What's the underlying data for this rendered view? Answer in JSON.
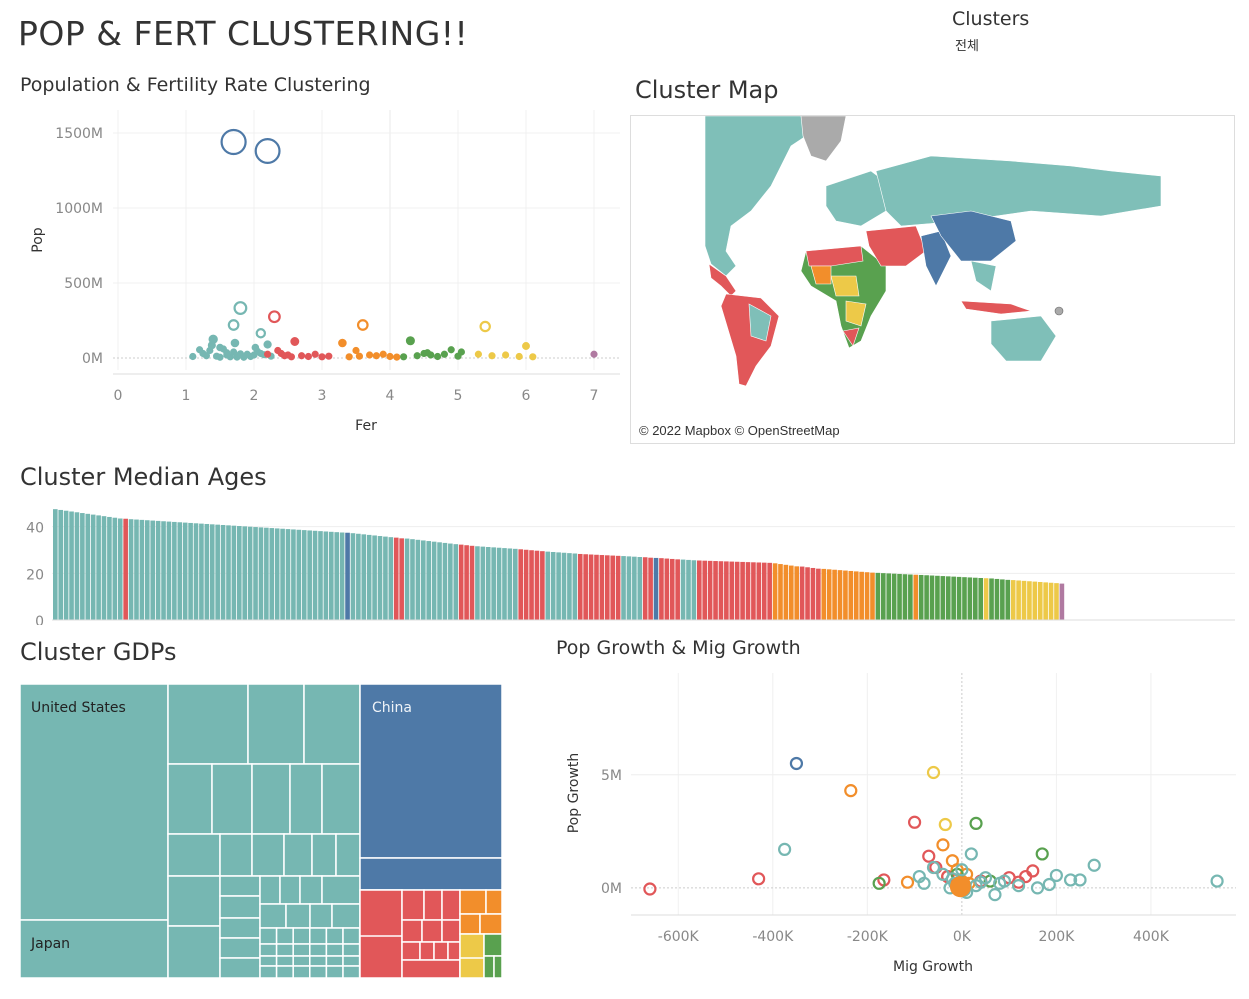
{
  "dashboard": {
    "title": "POP & FERT CLUSTERING!!",
    "filter_title": "Clusters",
    "filter_value": "전체"
  },
  "colors": {
    "teal": "#76b7b2",
    "blue": "#4e79a7",
    "red": "#e15759",
    "orange": "#f28e2b",
    "green": "#59a14f",
    "yellow": "#edc948",
    "purple": "#b07aa1",
    "gray": "#aaaaaa"
  },
  "titles": {
    "scatter": "Population & Fertility Rate Clustering",
    "map": "Cluster Map",
    "ages": "Cluster Median Ages",
    "gdp": "Cluster GDPs",
    "growth": "Pop Growth & Mig Growth"
  },
  "map": {
    "credit": "© 2022 Mapbox © OpenStreetMap"
  },
  "chart_data": [
    {
      "type": "scatter",
      "title": "Population & Fertility Rate Clustering",
      "xlabel": "Fer",
      "ylabel": "Pop",
      "xlim": [
        0,
        7
      ],
      "ylim": [
        -80,
        1600
      ],
      "xticks": [
        "0",
        "1",
        "2",
        "3",
        "4",
        "5",
        "6",
        "7"
      ],
      "yticks": [
        {
          "v": 0,
          "label": "0M"
        },
        {
          "v": 500,
          "label": "500M"
        },
        {
          "v": 1000,
          "label": "1000M"
        },
        {
          "v": 1500,
          "label": "1500M"
        }
      ],
      "series": [
        {
          "cluster": "blue",
          "points": [
            [
              1.7,
              1440
            ],
            [
              2.2,
              1380
            ]
          ]
        },
        {
          "cluster": "teal",
          "points": [
            [
              1.8,
              333
            ],
            [
              1.7,
              220
            ],
            [
              2.1,
              165
            ],
            [
              1.4,
              125
            ],
            [
              2.2,
              90
            ],
            [
              1.2,
              55
            ],
            [
              1.35,
              50
            ],
            [
              1.5,
              70
            ],
            [
              1.55,
              60
            ],
            [
              1.6,
              35
            ],
            [
              1.7,
              40
            ],
            [
              1.8,
              28
            ],
            [
              1.9,
              25
            ],
            [
              1.95,
              10
            ],
            [
              2.0,
              20
            ],
            [
              2.05,
              45
            ],
            [
              2.15,
              22
            ],
            [
              1.3,
              15
            ],
            [
              1.45,
              12
            ],
            [
              1.65,
              8
            ],
            [
              1.75,
              6
            ],
            [
              1.85,
              5
            ],
            [
              1.1,
              10
            ],
            [
              1.25,
              30
            ],
            [
              2.25,
              12
            ],
            [
              1.5,
              5
            ],
            [
              2.1,
              30
            ],
            [
              1.6,
              20
            ],
            [
              1.38,
              85
            ],
            [
              2.02,
              70
            ],
            [
              1.72,
              100
            ]
          ]
        },
        {
          "cluster": "red",
          "points": [
            [
              2.3,
              275
            ],
            [
              2.6,
              110
            ],
            [
              2.4,
              30
            ],
            [
              2.5,
              20
            ],
            [
              2.7,
              15
            ],
            [
              2.8,
              10
            ],
            [
              2.9,
              25
            ],
            [
              3.0,
              8
            ],
            [
              3.1,
              12
            ],
            [
              2.35,
              50
            ],
            [
              2.45,
              15
            ],
            [
              2.55,
              8
            ],
            [
              2.2,
              25
            ]
          ]
        },
        {
          "cluster": "orange",
          "points": [
            [
              3.6,
              220
            ],
            [
              3.3,
              100
            ],
            [
              3.5,
              50
            ],
            [
              3.7,
              20
            ],
            [
              3.8,
              15
            ],
            [
              3.9,
              25
            ],
            [
              4.0,
              10
            ],
            [
              3.4,
              8
            ],
            [
              3.55,
              12
            ],
            [
              4.1,
              6
            ]
          ]
        },
        {
          "cluster": "green",
          "points": [
            [
              4.3,
              115
            ],
            [
              4.9,
              55
            ],
            [
              4.5,
              30
            ],
            [
              4.4,
              15
            ],
            [
              4.6,
              20
            ],
            [
              4.7,
              10
            ],
            [
              4.8,
              25
            ],
            [
              5.0,
              12
            ],
            [
              5.05,
              40
            ],
            [
              4.2,
              8
            ],
            [
              4.55,
              35
            ]
          ]
        },
        {
          "cluster": "yellow",
          "points": [
            [
              5.4,
              210
            ],
            [
              6.0,
              80
            ],
            [
              5.5,
              15
            ],
            [
              5.7,
              20
            ],
            [
              5.9,
              10
            ],
            [
              6.1,
              8
            ],
            [
              5.3,
              25
            ]
          ]
        },
        {
          "cluster": "purple",
          "points": [
            [
              7.0,
              25
            ]
          ]
        }
      ]
    },
    {
      "type": "bar",
      "title": "Cluster Median Ages",
      "yticks": [
        "40",
        "20",
        "0"
      ],
      "ylim": [
        0,
        48
      ],
      "series": [
        {
          "cluster": "teal",
          "count": 13,
          "from": 47.5,
          "to": 43.5
        },
        {
          "cluster": "red",
          "count": 1,
          "from": 43.4,
          "to": 43.4
        },
        {
          "cluster": "teal",
          "count": 40,
          "from": 43.2,
          "to": 37.5
        },
        {
          "cluster": "blue",
          "count": 1,
          "from": 37.4,
          "to": 37.4
        },
        {
          "cluster": "teal",
          "count": 8,
          "from": 37.2,
          "to": 35.5
        },
        {
          "cluster": "red",
          "count": 2,
          "from": 35.3,
          "to": 35.0
        },
        {
          "cluster": "teal",
          "count": 10,
          "from": 34.9,
          "to": 32.5
        },
        {
          "cluster": "red",
          "count": 3,
          "from": 32.3,
          "to": 31.8
        },
        {
          "cluster": "teal",
          "count": 8,
          "from": 31.6,
          "to": 30.5
        },
        {
          "cluster": "red",
          "count": 5,
          "from": 30.3,
          "to": 29.5
        },
        {
          "cluster": "teal",
          "count": 6,
          "from": 29.3,
          "to": 28.5
        },
        {
          "cluster": "red",
          "count": 8,
          "from": 28.3,
          "to": 27.5
        },
        {
          "cluster": "teal",
          "count": 4,
          "from": 27.4,
          "to": 27.0
        },
        {
          "cluster": "red",
          "count": 2,
          "from": 26.9,
          "to": 26.7
        },
        {
          "cluster": "blue",
          "count": 1,
          "from": 26.6,
          "to": 26.6
        },
        {
          "cluster": "red",
          "count": 4,
          "from": 26.5,
          "to": 26.0
        },
        {
          "cluster": "teal",
          "count": 3,
          "from": 25.9,
          "to": 25.6
        },
        {
          "cluster": "red",
          "count": 14,
          "from": 25.5,
          "to": 24.5
        },
        {
          "cluster": "orange",
          "count": 5,
          "from": 24.3,
          "to": 23.0
        },
        {
          "cluster": "red",
          "count": 4,
          "from": 22.9,
          "to": 22.0
        },
        {
          "cluster": "orange",
          "count": 10,
          "from": 21.9,
          "to": 20.3
        },
        {
          "cluster": "green",
          "count": 7,
          "from": 20.2,
          "to": 19.5
        },
        {
          "cluster": "orange",
          "count": 1,
          "from": 19.4,
          "to": 19.4
        },
        {
          "cluster": "green",
          "count": 12,
          "from": 19.3,
          "to": 18.0
        },
        {
          "cluster": "yellow",
          "count": 1,
          "from": 17.9,
          "to": 17.9
        },
        {
          "cluster": "green",
          "count": 4,
          "from": 17.8,
          "to": 17.2
        },
        {
          "cluster": "yellow",
          "count": 9,
          "from": 17.1,
          "to": 15.8
        },
        {
          "cluster": "purple",
          "count": 1,
          "from": 15.6,
          "to": 15.6
        }
      ]
    },
    {
      "type": "treemap",
      "title": "Cluster GDPs",
      "labels": [
        "United States",
        "Japan",
        "China"
      ]
    },
    {
      "type": "scatter",
      "title": "Pop Growth & Mig Growth",
      "xlabel": "Mig Growth",
      "ylabel": "Pop Growth",
      "xlim": [
        -700,
        580
      ],
      "ylim": [
        -1.2,
        9.5
      ],
      "xticks": [
        {
          "v": -600,
          "label": "-600K"
        },
        {
          "v": -400,
          "label": "-400K"
        },
        {
          "v": -200,
          "label": "-200K"
        },
        {
          "v": 0,
          "label": "0K"
        },
        {
          "v": 200,
          "label": "200K"
        },
        {
          "v": 400,
          "label": "400K"
        }
      ],
      "yticks": [
        {
          "v": 0,
          "label": "0M"
        },
        {
          "v": 5,
          "label": "5M"
        }
      ],
      "series": [
        {
          "cluster": "blue",
          "points": [
            [
              -350,
              5.5
            ]
          ]
        },
        {
          "cluster": "yellow",
          "points": [
            [
              -60,
              5.1
            ],
            [
              -35,
              2.8
            ]
          ]
        },
        {
          "cluster": "orange",
          "points": [
            [
              -235,
              4.3
            ],
            [
              -40,
              1.9
            ],
            [
              -20,
              1.2
            ],
            [
              -10,
              0.8
            ],
            [
              0,
              0.3
            ],
            [
              10,
              0.6
            ],
            [
              -115,
              0.25
            ],
            [
              -5,
              0.1
            ],
            [
              15,
              0.2
            ],
            [
              -30,
              0.5
            ],
            [
              5,
              0.15
            ]
          ]
        },
        {
          "cluster": "red",
          "points": [
            [
              -100,
              2.9
            ],
            [
              -660,
              -0.05
            ],
            [
              -430,
              0.4
            ],
            [
              -165,
              0.35
            ],
            [
              -70,
              1.4
            ],
            [
              -55,
              0.9
            ],
            [
              -30,
              0.5
            ],
            [
              100,
              0.45
            ],
            [
              120,
              0.25
            ],
            [
              135,
              0.5
            ],
            [
              150,
              0.75
            ],
            [
              40,
              0.3
            ]
          ]
        },
        {
          "cluster": "green",
          "points": [
            [
              30,
              2.85
            ],
            [
              170,
              1.5
            ],
            [
              -175,
              0.2
            ],
            [
              -10,
              0.6
            ],
            [
              60,
              0.3
            ]
          ]
        },
        {
          "cluster": "teal",
          "points": [
            [
              -375,
              1.7
            ],
            [
              20,
              1.5
            ],
            [
              280,
              1.0
            ],
            [
              200,
              0.55
            ],
            [
              230,
              0.35
            ],
            [
              250,
              0.35
            ],
            [
              185,
              0.15
            ],
            [
              540,
              0.3
            ],
            [
              -80,
              0.2
            ],
            [
              -40,
              0.6
            ],
            [
              -20,
              0.4
            ],
            [
              0,
              0.8
            ],
            [
              10,
              -0.2
            ],
            [
              30,
              0.1
            ],
            [
              -60,
              0.9
            ],
            [
              70,
              -0.3
            ],
            [
              50,
              0.45
            ],
            [
              80,
              0.2
            ],
            [
              -90,
              0.5
            ],
            [
              -25,
              0.0
            ],
            [
              5,
              -0.1
            ],
            [
              160,
              0.0
            ],
            [
              120,
              0.1
            ],
            [
              90,
              0.3
            ],
            [
              40,
              0.25
            ],
            [
              -15,
              0.2
            ]
          ]
        }
      ]
    }
  ]
}
